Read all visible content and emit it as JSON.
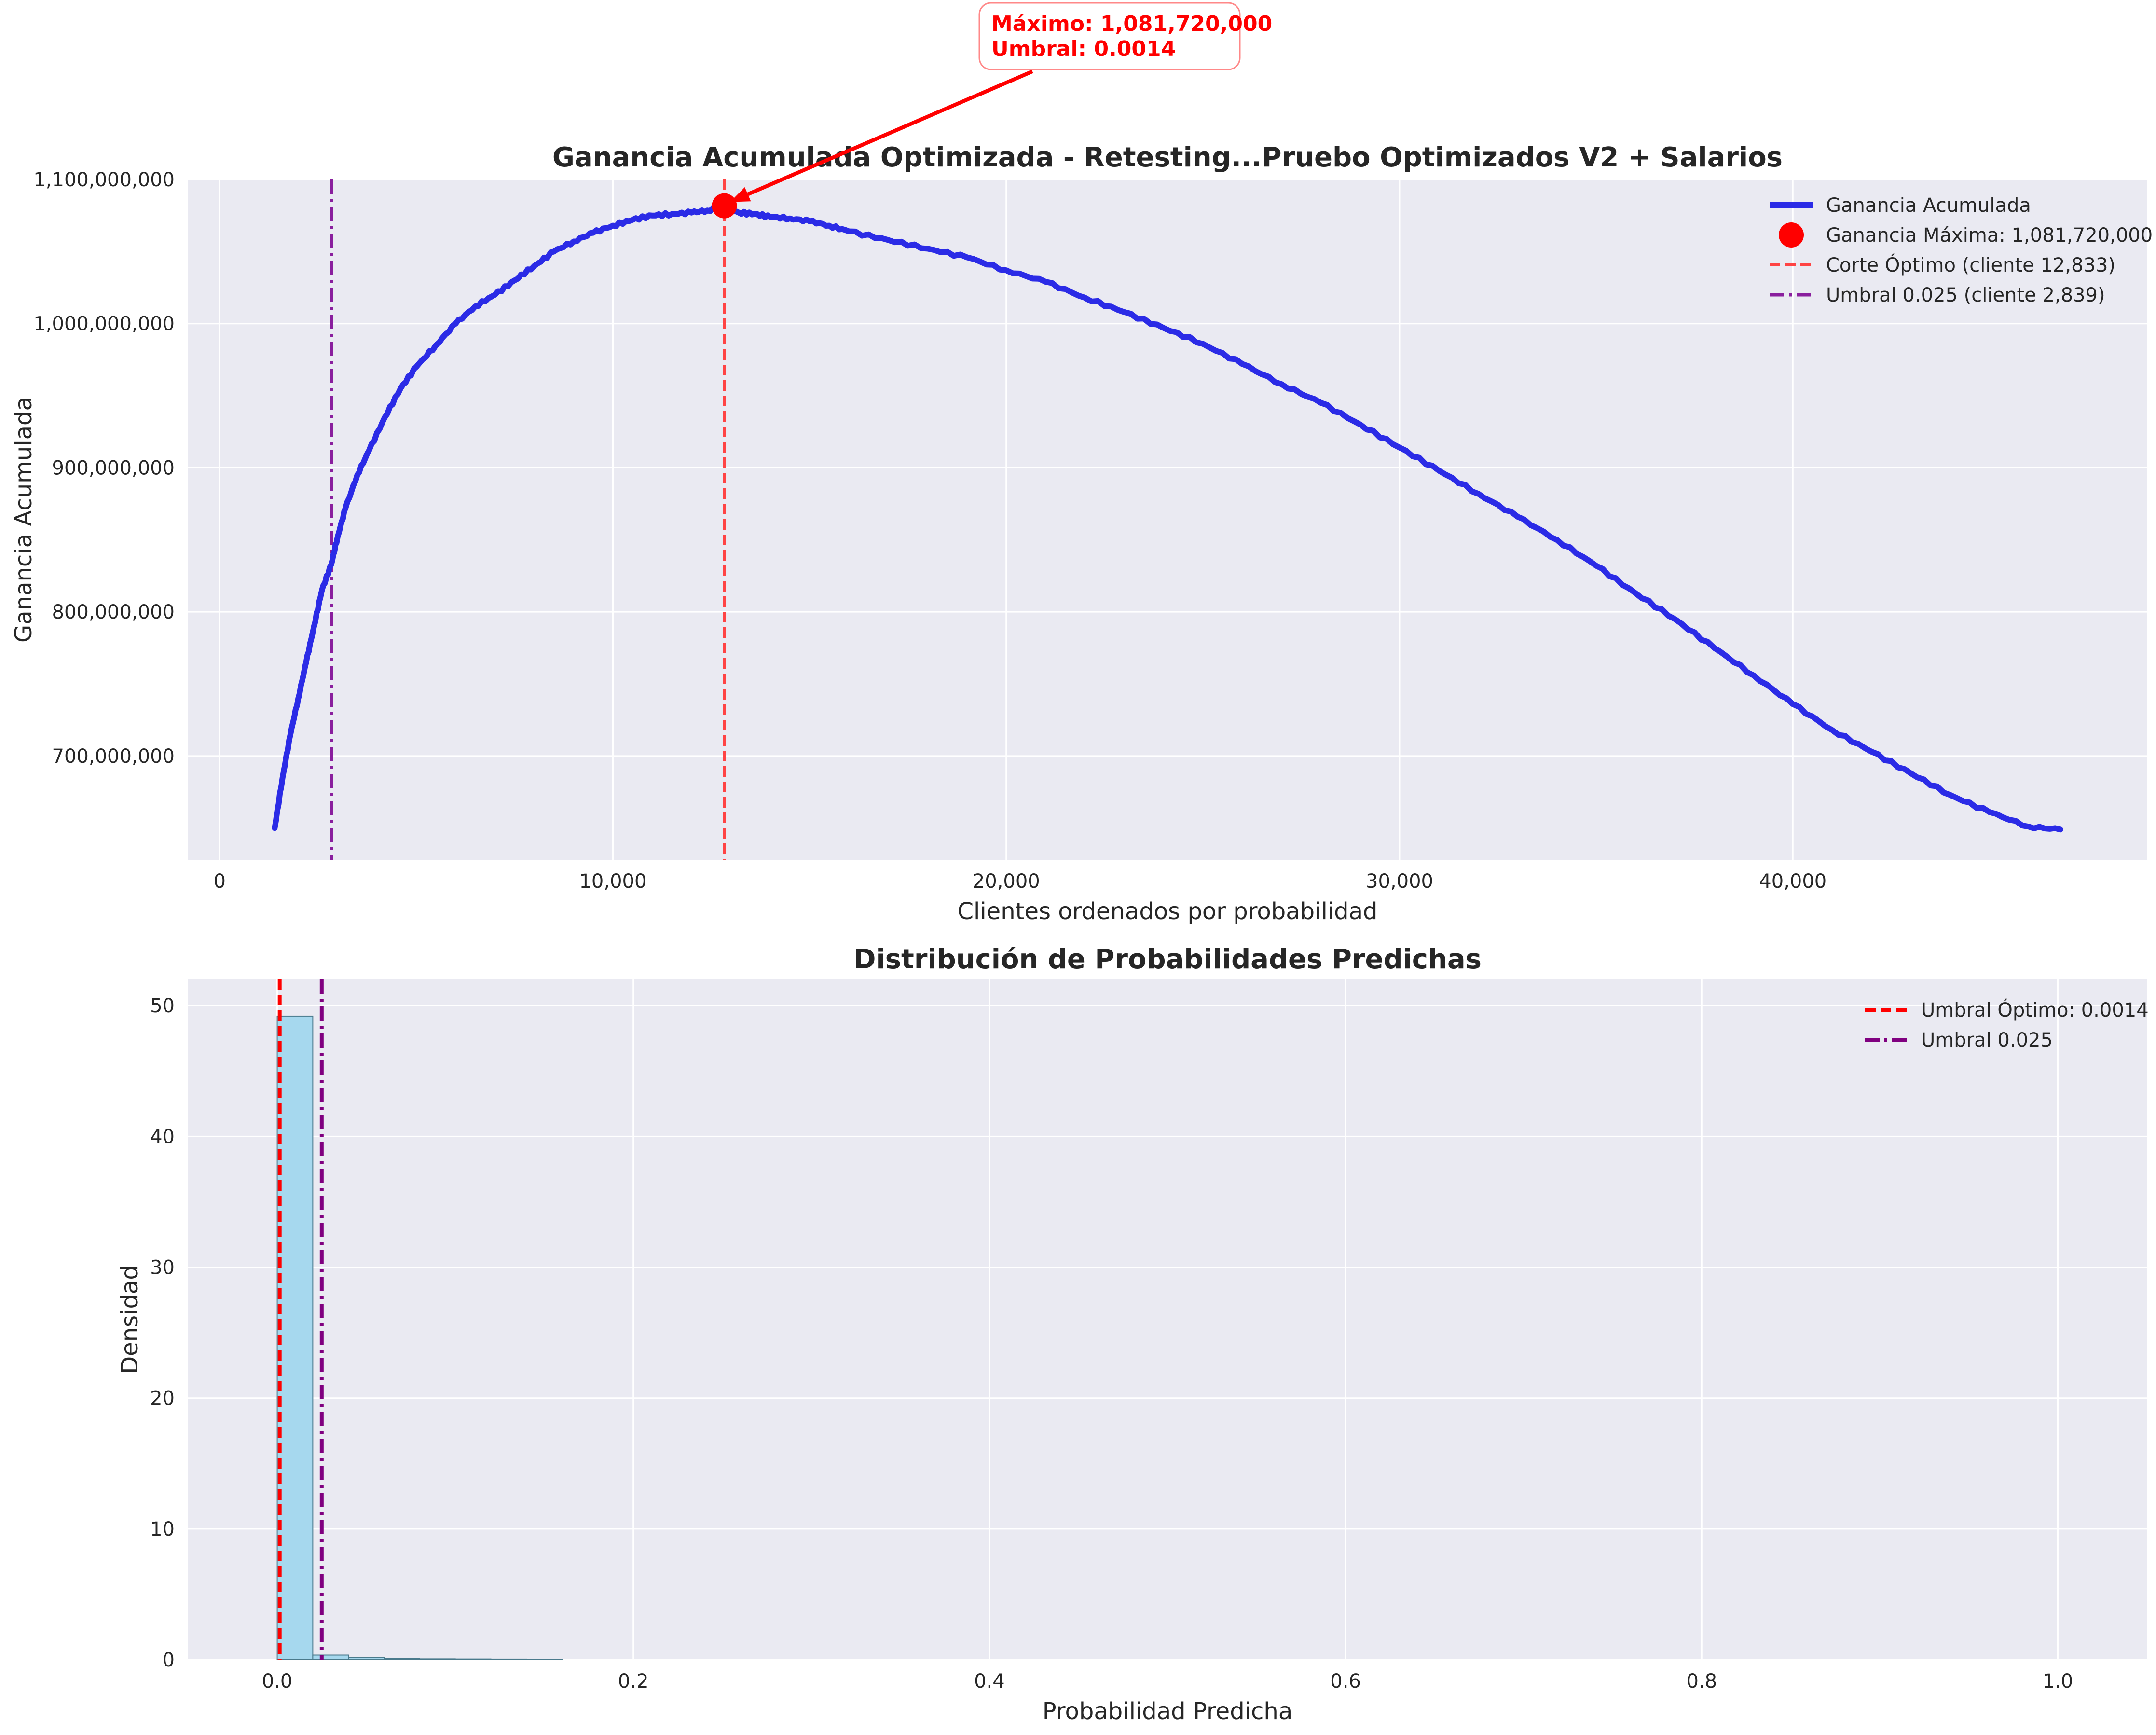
{
  "chart_data": [
    {
      "type": "line",
      "title": "Ganancia Acumulada Optimizada - Retesting...Pruebo Optimizados V2 + Salarios",
      "xlabel": "Clientes ordenados por probabilidad",
      "ylabel": "Ganancia Acumulada",
      "xlim": [
        -800,
        49000
      ],
      "ylim": [
        628000000,
        1100000000
      ],
      "x_ticks": [
        0,
        10000,
        20000,
        30000,
        40000
      ],
      "x_tick_labels": [
        "0",
        "10,000",
        "20,000",
        "30,000",
        "40,000"
      ],
      "y_ticks": [
        700000000,
        800000000,
        900000000,
        1000000000,
        1100000000
      ],
      "y_tick_labels": [
        "700,000,000",
        "800,000,000",
        "900,000,000",
        "1,000,000,000",
        "1,100,000,000"
      ],
      "grid": true,
      "legend_position": "top-right",
      "series": [
        {
          "name": "Ganancia Acumulada",
          "color": "#2b2be6",
          "x": [
            1400,
            1600,
            1800,
            2000,
            2200,
            2400,
            2600,
            2839,
            3000,
            3200,
            3500,
            3800,
            4200,
            4600,
            5000,
            5500,
            6000,
            6500,
            7000,
            7500,
            8000,
            8500,
            9000,
            9500,
            10000,
            10500,
            11000,
            11500,
            12000,
            12400,
            12833,
            13200,
            13600,
            14000,
            14500,
            15000,
            15500,
            16000,
            17000,
            18000,
            19000,
            20000,
            21000,
            22000,
            23000,
            24000,
            25000,
            26000,
            27000,
            28000,
            29000,
            30000,
            31000,
            32000,
            33000,
            34000,
            35000,
            36000,
            37000,
            38000,
            39000,
            40000,
            41000,
            42000,
            43000,
            44000,
            45000,
            46000,
            46800
          ],
          "values": [
            650000000,
            685000000,
            715000000,
            740000000,
            765000000,
            790000000,
            815000000,
            833000000,
            852000000,
            872000000,
            895000000,
            912000000,
            935000000,
            955000000,
            970000000,
            985000000,
            1000000000,
            1012000000,
            1020000000,
            1030000000,
            1040000000,
            1050000000,
            1057000000,
            1063000000,
            1068000000,
            1072000000,
            1075000000,
            1076000000,
            1077000000,
            1078500000,
            1081720000,
            1077000000,
            1076000000,
            1074000000,
            1073000000,
            1071000000,
            1068000000,
            1064000000,
            1058000000,
            1052000000,
            1046000000,
            1037000000,
            1029000000,
            1018000000,
            1008000000,
            997000000,
            986000000,
            972000000,
            958000000,
            945000000,
            930000000,
            914000000,
            898000000,
            882000000,
            866000000,
            850000000,
            832000000,
            813000000,
            795000000,
            775000000,
            756000000,
            736000000,
            718000000,
            703000000,
            688000000,
            673000000,
            661000000,
            651000000,
            649000000
          ]
        }
      ],
      "marker": {
        "label": "Ganancia Máxima: 1,081,720,000",
        "x": 12833,
        "y": 1081720000,
        "color": "#ff0000"
      },
      "vlines": [
        {
          "label": "Corte Óptimo (cliente 12,833)",
          "x": 12833,
          "color": "#ff4444",
          "style": "dashed"
        },
        {
          "label": "Umbral 0.025 (cliente 2,839)",
          "x": 2839,
          "color": "#8a1f9e",
          "style": "dashdot"
        }
      ],
      "annotation": {
        "lines": [
          "Máximo: 1,081,720,000",
          "Umbral: 0.0014"
        ],
        "color": "#ff0000"
      }
    },
    {
      "type": "bar",
      "title": "Distribución de Probabilidades Predichas",
      "xlabel": "Probabilidad Predicha",
      "ylabel": "Densidad",
      "xlim": [
        -0.05,
        1.05
      ],
      "ylim": [
        0,
        52
      ],
      "x_ticks": [
        0.0,
        0.2,
        0.4,
        0.6,
        0.8,
        1.0
      ],
      "x_tick_labels": [
        "0.0",
        "0.2",
        "0.4",
        "0.6",
        "0.8",
        "1.0"
      ],
      "y_ticks": [
        0,
        10,
        20,
        30,
        40,
        50
      ],
      "y_tick_labels": [
        "0",
        "10",
        "20",
        "30",
        "40",
        "50"
      ],
      "grid": true,
      "legend_position": "top-right",
      "bin_edges": [
        0.0,
        0.02,
        0.04,
        0.06,
        0.08,
        0.1,
        0.12,
        0.14,
        0.16
      ],
      "values": [
        49.2,
        0.35,
        0.15,
        0.09,
        0.06,
        0.05,
        0.04,
        0.03
      ],
      "bar_color": "#a6d8ee",
      "vlines": [
        {
          "label": "Umbral Óptimo: 0.0014",
          "x": 0.0014,
          "color": "#ff0000",
          "style": "dashed"
        },
        {
          "label": "Umbral 0.025",
          "x": 0.025,
          "color": "#800080",
          "style": "dashdot"
        }
      ]
    }
  ]
}
